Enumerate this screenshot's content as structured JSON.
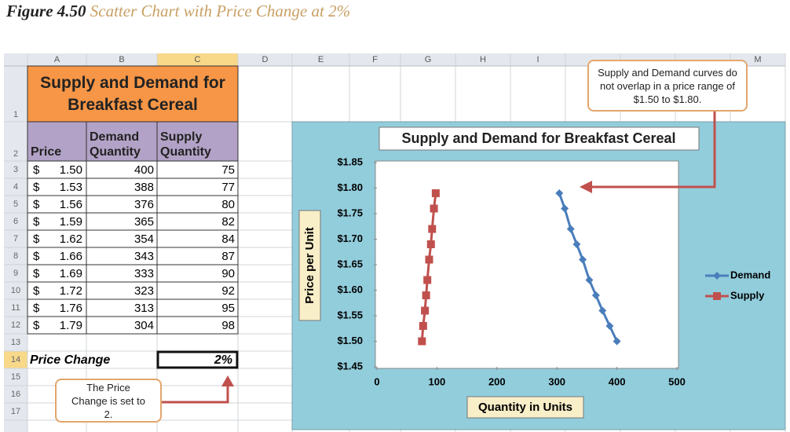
{
  "figure_caption": {
    "label": "Figure 4.50",
    "text": "Scatter Chart with Price Change at 2%"
  },
  "spreadsheet": {
    "column_headers": [
      "A",
      "B",
      "C",
      "D",
      "E",
      "F",
      "G",
      "H",
      "I",
      "M"
    ],
    "row_headers": [
      "1",
      "2",
      "3",
      "4",
      "5",
      "6",
      "7",
      "8",
      "9",
      "10",
      "11",
      "12",
      "13",
      "14",
      "15",
      "16",
      "17"
    ],
    "title": "Supply and Demand for Breakfast Cereal",
    "header_row": [
      "Price",
      "Demand Quantity",
      "Supply Quantity"
    ],
    "currency_symbol": "$",
    "rows": [
      [
        "1.50",
        "400",
        "75"
      ],
      [
        "1.53",
        "388",
        "77"
      ],
      [
        "1.56",
        "376",
        "80"
      ],
      [
        "1.59",
        "365",
        "82"
      ],
      [
        "1.62",
        "354",
        "84"
      ],
      [
        "1.66",
        "343",
        "87"
      ],
      [
        "1.69",
        "333",
        "90"
      ],
      [
        "1.72",
        "323",
        "92"
      ],
      [
        "1.76",
        "313",
        "95"
      ],
      [
        "1.79",
        "304",
        "98"
      ]
    ],
    "price_change_label": "Price Change",
    "price_change": "2%"
  },
  "chart_data": {
    "type": "scatter",
    "title": "Supply and Demand for Breakfast Cereal",
    "x_label": "Quantity in Units",
    "y_label": "Price per Unit",
    "xlim": [
      0,
      500
    ],
    "xticks": [
      0,
      100,
      200,
      300,
      400,
      500
    ],
    "ylim": [
      1.45,
      1.85
    ],
    "yticks": [
      {
        "value": 1.45,
        "label": "$1.45"
      },
      {
        "value": 1.5,
        "label": "$1.50"
      },
      {
        "value": 1.55,
        "label": "$1.55"
      },
      {
        "value": 1.6,
        "label": "$1.60"
      },
      {
        "value": 1.65,
        "label": "$1.65"
      },
      {
        "value": 1.7,
        "label": "$1.70"
      },
      {
        "value": 1.75,
        "label": "$1.75"
      },
      {
        "value": 1.8,
        "label": "$1.80"
      },
      {
        "value": 1.85,
        "label": "$1.85"
      }
    ],
    "grid": false,
    "legend": "right",
    "series": [
      {
        "name": "Demand",
        "color": "#4a7ebb",
        "marker": "diamond",
        "x": [
          400,
          388,
          376,
          365,
          354,
          343,
          333,
          323,
          313,
          304
        ],
        "values": [
          1.5,
          1.53,
          1.56,
          1.59,
          1.62,
          1.66,
          1.69,
          1.72,
          1.76,
          1.79
        ]
      },
      {
        "name": "Supply",
        "color": "#c0504d",
        "marker": "square",
        "x": [
          75,
          77,
          80,
          82,
          84,
          87,
          90,
          92,
          95,
          98
        ],
        "values": [
          1.5,
          1.53,
          1.56,
          1.59,
          1.62,
          1.66,
          1.69,
          1.72,
          1.76,
          1.79
        ]
      }
    ]
  },
  "callouts": [
    "Supply and Demand curves do not overlap in a price range of $1.50 to $1.80.",
    "The Price Change is set to 2."
  ]
}
